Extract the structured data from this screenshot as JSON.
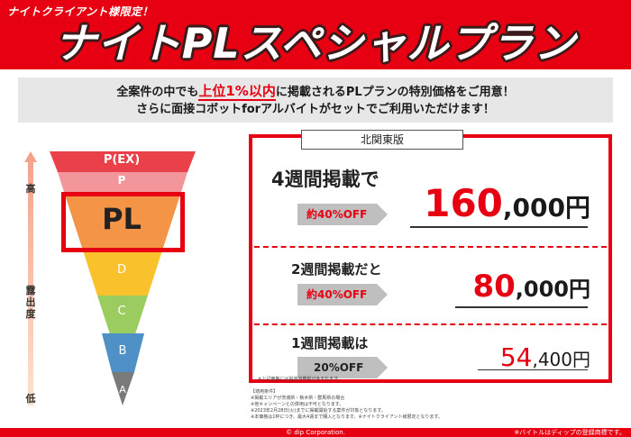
{
  "header": {
    "tag": "ナイトクライアント様限定！",
    "title": "ナイトPLスペシャルプラン"
  },
  "lead": {
    "line1_before": "全案件の中でも",
    "line1_highlight": "上位1%以内",
    "line1_after": "に掲載されるPLプランの特別価格をご用意！",
    "line2": "さらに面接コボットforアルバイトがセットでご利用いただけます！"
  },
  "axis": {
    "high": "高",
    "label": "露出度",
    "low": "低"
  },
  "funnel": [
    {
      "label": "P(EX)",
      "color": "#e9404a"
    },
    {
      "label": "P",
      "color": "#f2969b"
    },
    {
      "label": "PL",
      "color": "#f39447"
    },
    {
      "label": "D",
      "color": "#f9c22d"
    },
    {
      "label": "C",
      "color": "#9bcc60"
    },
    {
      "label": "B",
      "color": "#4f91c7"
    },
    {
      "label": "A",
      "color": "#7a7a7a"
    }
  ],
  "price_box": {
    "region": "北関東版",
    "plans": [
      {
        "period": "4週間掲載で",
        "badge": "約40%OFF",
        "price_main": "160",
        "price_rest": ",000円"
      },
      {
        "period": "2週間掲載だと",
        "badge": "約40%OFF",
        "price_main": "80",
        "price_rest": ",000円"
      },
      {
        "period": "1週間掲載は",
        "badge": "20%OFF",
        "price_main": "54",
        "price_rest": ",400円"
      }
    ],
    "tax_note": "※上記価格には別途消費税が含まれます。"
  },
  "conditions": {
    "title": "【適用条件】",
    "lines": [
      "※掲載エリアが茨城県・栃木県・群馬県の場合",
      "※他キャンペーンとの併用は不可となります。",
      "※2023年2月28日(火)までに掲載開始する案件が対象となります。",
      "※本価格は1枠につき、最大4週まで購入となります。※ナイトクライアント様限定となります。"
    ]
  },
  "footer": {
    "copyright": "© dip Corporation.",
    "trademark": "※バイトルはディップの登録商標です。"
  },
  "colors": {
    "brand_red": "#e60012",
    "badge_gray": "#bfbfbf"
  }
}
